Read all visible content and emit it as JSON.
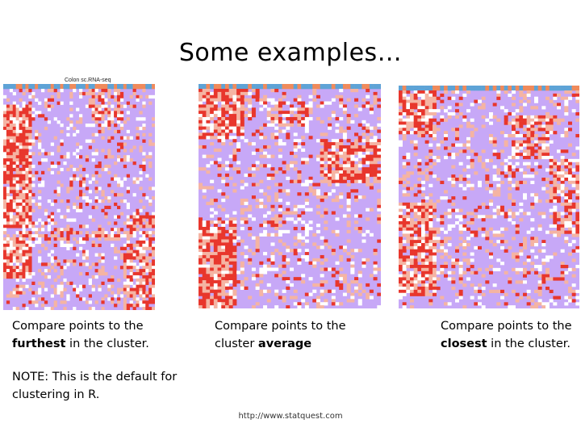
{
  "title": "Some examples…",
  "heatmap_label": "Colon sc.RNA-seq",
  "captions": {
    "furthest": {
      "pre": "Compare points to the ",
      "bold": "furthest",
      "post": " in the cluster."
    },
    "average": {
      "pre": "Compare points to the cluster ",
      "bold": "average",
      "post": ""
    },
    "closest": {
      "pre": "Compare points to the ",
      "bold": "closest",
      "post": " in the cluster."
    }
  },
  "note": "NOTE: This is the default for clustering in R.",
  "footer": "http://www.statquest.com",
  "colors": {
    "background": "#c7a8f7",
    "white": "#ffffff",
    "light_red": "#f5b4a3",
    "red": "#e8362c",
    "bar_blue": "#5ea3d6",
    "bar_orange": "#f08a5b"
  }
}
